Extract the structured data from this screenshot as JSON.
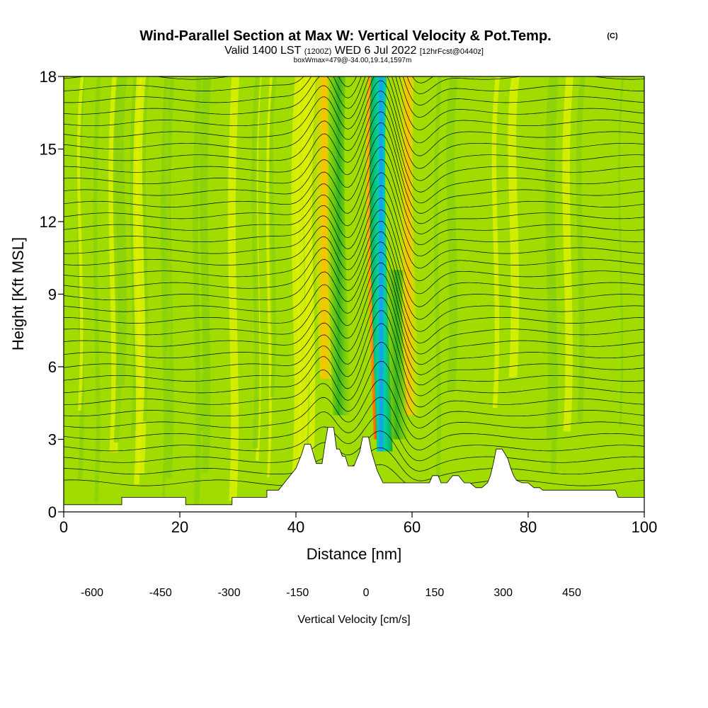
{
  "title": {
    "main": "Wind-Parallel Section at Max W: Vertical Velocity & Pot.Temp.",
    "copyright": "(C)",
    "valid_prefix": "Valid 1400 LST",
    "valid_zulu": "(1200Z)",
    "valid_date": "WED 6 Jul 2022",
    "forecast": "[12hrFcst@0440z]",
    "box_info": "boxWmax=479@-34.00,19.14,1597m"
  },
  "chart_data": {
    "type": "heatmap",
    "xlabel": "Distance [nm]",
    "ylabel": "Height [Kft MSL]",
    "xlim": [
      0,
      100
    ],
    "ylim": [
      0,
      18
    ],
    "x_ticks": [
      0,
      20,
      40,
      60,
      80,
      100
    ],
    "y_ticks": [
      0,
      3,
      6,
      9,
      12,
      15,
      18
    ],
    "colorbar": {
      "title": "Vertical Velocity [cm/s]",
      "min": -600,
      "max": 550,
      "step": 50,
      "tick_values": [
        -600,
        -450,
        -300,
        -150,
        0,
        150,
        300,
        450
      ],
      "colors": [
        "#0000ff",
        "#0a32ff",
        "#1464ff",
        "#1e96ff",
        "#14c8ff",
        "#00e6e6",
        "#00d2a0",
        "#00be6e",
        "#14aa3c",
        "#32b41e",
        "#6ec814",
        "#a0dc00",
        "#dcf000",
        "#f0f000",
        "#ffe600",
        "#ffd200",
        "#ffbe00",
        "#ffa500",
        "#ff8c00",
        "#ff6e00",
        "#ff5000",
        "#ff2d00",
        "#e6000a",
        "#c8001e"
      ]
    },
    "overlay": "potential temperature isentropes (thin black contours)",
    "vertical_velocity_features": [
      {
        "kind": "strong updraft core",
        "x": 54.6,
        "height_range": [
          3.0,
          18.0
        ],
        "peak": 479
      },
      {
        "kind": "strong downdraft core",
        "x": 55.3,
        "height_range": [
          2.5,
          18.0
        ],
        "peak": -450
      },
      {
        "kind": "moderate updraft band",
        "x": 45.5,
        "height_range": [
          5.5,
          18.0
        ],
        "peak": 200
      },
      {
        "kind": "moderate downdraft band",
        "x": 48.0,
        "height_range": [
          4.0,
          18.0
        ],
        "peak": -150
      },
      {
        "kind": "moderate updraft band",
        "x": 60.0,
        "height_range": [
          4.0,
          18.0
        ],
        "peak": 200
      },
      {
        "kind": "moderate downdraft band",
        "x": 58.0,
        "height_range": [
          3.0,
          10.0
        ],
        "peak": -150
      }
    ],
    "terrain_profile": {
      "x": [
        0,
        10,
        10,
        21,
        21,
        29,
        29,
        35,
        35,
        37,
        38,
        39,
        40,
        41,
        41.5,
        42.5,
        43.5,
        44.5,
        45,
        45.5,
        46.5,
        47,
        47.5,
        48,
        48.5,
        49,
        50,
        51,
        51.5,
        52.5,
        53,
        54,
        55,
        55.5,
        56,
        60,
        63,
        63.5,
        64.5,
        65,
        66,
        67,
        68,
        69,
        70,
        71,
        72,
        73,
        73.5,
        74,
        74.5,
        75,
        75.5,
        76.5,
        77,
        77.5,
        78,
        79,
        80,
        81,
        82,
        82.5,
        83,
        88,
        95,
        95.5,
        100
      ],
      "h": [
        0.3,
        0.3,
        0.6,
        0.6,
        0.3,
        0.3,
        0.6,
        0.6,
        0.9,
        0.9,
        1.2,
        1.5,
        1.8,
        2.4,
        2.8,
        2.8,
        2.0,
        2.0,
        2.8,
        3.5,
        3.5,
        2.6,
        2.6,
        2.3,
        2.3,
        1.9,
        1.9,
        2.5,
        3.1,
        3.1,
        2.5,
        1.7,
        1.2,
        1.2,
        1.2,
        1.2,
        1.2,
        1.5,
        1.5,
        1.2,
        1.2,
        1.5,
        1.5,
        1.2,
        1.2,
        1.0,
        1.0,
        1.2,
        1.5,
        2.0,
        2.6,
        2.6,
        2.6,
        2.2,
        1.8,
        1.5,
        1.3,
        1.2,
        1.2,
        1.0,
        1.0,
        0.9,
        0.9,
        0.9,
        0.9,
        0.6,
        0.6
      ]
    }
  }
}
